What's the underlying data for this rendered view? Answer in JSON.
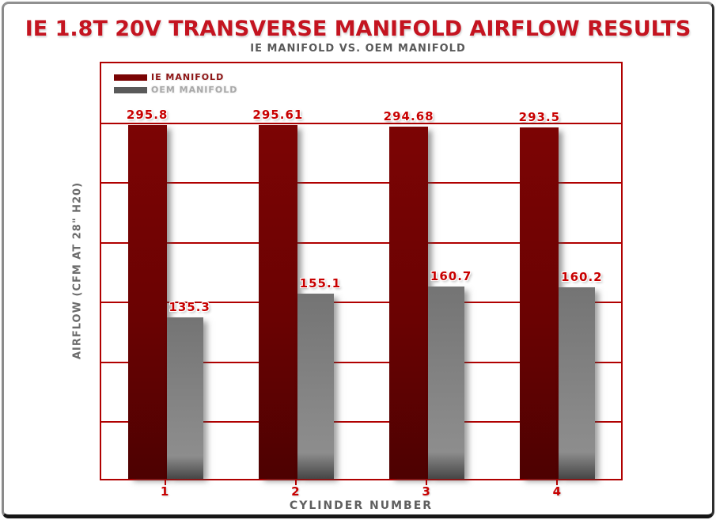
{
  "header": {
    "title": "IE 1.8T 20V TRANSVERSE MANIFOLD AIRFLOW RESULTS",
    "subtitle": "IE MANIFOLD VS. OEM MANIFOLD"
  },
  "legend": {
    "items": [
      {
        "label": "IE MANIFOLD",
        "swatch_color": "#7a0404",
        "text_color": "#8e1414"
      },
      {
        "label": "OEM MANIFOLD",
        "swatch_color": "#5a5a5a",
        "text_color": "#a8a8a8"
      }
    ]
  },
  "chart_data": {
    "type": "bar",
    "title": "IE 1.8T 20V TRANSVERSE MANIFOLD AIRFLOW RESULTS",
    "subtitle": "IE MANIFOLD VS. OEM MANIFOLD",
    "categories": [
      "1",
      "2",
      "3",
      "4"
    ],
    "series": [
      {
        "name": "IE MANIFOLD",
        "color": "#6e0303",
        "values": [
          295.8,
          295.61,
          294.68,
          293.5
        ]
      },
      {
        "name": "OEM MANIFOLD",
        "color": "#7d7d7d",
        "values": [
          135.3,
          155.1,
          160.7,
          160.2
        ]
      }
    ],
    "xlabel": "CYLINDER NUMBER",
    "ylabel": "AIRFLOW (CFM AT 28\" H20)",
    "ylim": [
      0,
      350
    ],
    "gridline_step": 50,
    "grid": "horizontal-only",
    "y_tick_labels_shown": false,
    "value_labels_shown": true,
    "value_label_color": "#c80000",
    "legend_position": "top-left-inside",
    "grid_color": "#b00000",
    "title_color": "#c41420"
  }
}
